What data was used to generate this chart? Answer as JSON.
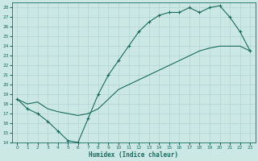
{
  "xlabel": "Humidex (Indice chaleur)",
  "bg_color": "#cce8e5",
  "line_color": "#1a6b5e",
  "grid_color": "#aacfcc",
  "xlim": [
    -0.5,
    23.5
  ],
  "ylim": [
    14,
    28.5
  ],
  "xticks": [
    0,
    1,
    2,
    3,
    4,
    5,
    6,
    7,
    8,
    9,
    10,
    11,
    12,
    13,
    14,
    15,
    16,
    17,
    18,
    19,
    20,
    21,
    22,
    23
  ],
  "yticks": [
    14,
    15,
    16,
    17,
    18,
    19,
    20,
    21,
    22,
    23,
    24,
    25,
    26,
    27,
    28
  ],
  "curve1_x": [
    0,
    1,
    2,
    3,
    4,
    5,
    6,
    7,
    8,
    9,
    10,
    11,
    12,
    13,
    14,
    15,
    16,
    17,
    18,
    19,
    20,
    21,
    22,
    23
  ],
  "curve1_y": [
    18.5,
    17.5,
    17.0,
    16.2,
    15.2,
    14.2,
    14.0,
    16.5,
    19.0,
    21.0,
    22.5,
    24.0,
    25.5,
    26.5,
    27.2,
    27.5,
    27.5,
    28.0,
    27.5,
    28.0,
    28.2,
    27.0,
    25.5,
    23.5
  ],
  "curve2_x": [
    0,
    1,
    2,
    3,
    4,
    5,
    6,
    7,
    8,
    9,
    10,
    11,
    12,
    13,
    14,
    15,
    16,
    17,
    18,
    19,
    20,
    21,
    22,
    23
  ],
  "curve2_y": [
    18.5,
    18.0,
    18.2,
    17.5,
    17.2,
    17.0,
    16.8,
    17.0,
    17.5,
    18.5,
    19.5,
    20.0,
    20.5,
    21.0,
    21.5,
    22.0,
    22.5,
    23.0,
    23.5,
    23.8,
    24.0,
    24.0,
    24.0,
    23.5
  ]
}
